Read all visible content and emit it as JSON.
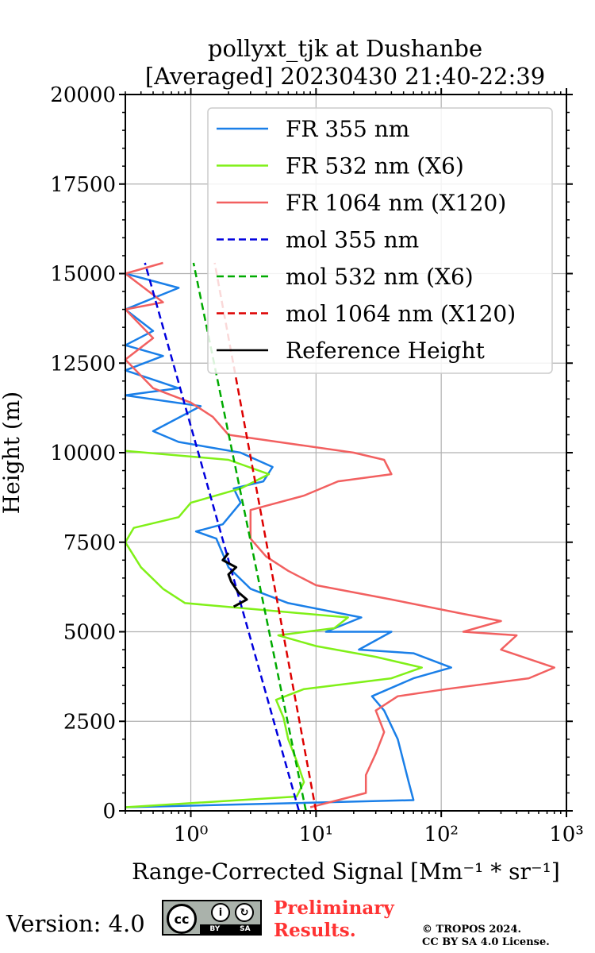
{
  "chart_data": {
    "type": "line",
    "title_line1": "pollyxt_tjk at Dushanbe",
    "title_line2": "[Averaged] 20230430 21:40-22:39",
    "xlabel": "Range-Corrected Signal [Mm⁻¹ * sr⁻¹]",
    "ylabel": "Height (m)",
    "xscale": "log",
    "xlim": [
      0.3,
      1000
    ],
    "ylim": [
      0,
      20000
    ],
    "x_ticks": [
      1,
      10,
      100,
      1000
    ],
    "x_tick_labels": [
      "10⁰",
      "10¹",
      "10²",
      "10³"
    ],
    "y_ticks": [
      0,
      2500,
      5000,
      7500,
      10000,
      12500,
      15000,
      17500,
      20000
    ],
    "y_tick_labels": [
      "0",
      "2500",
      "5000",
      "7500",
      "10000",
      "12500",
      "15000",
      "17500",
      "20000"
    ],
    "grid": true,
    "legend_position": "top-right",
    "series": [
      {
        "name": "FR 355 nm",
        "color": "#1a7fe8",
        "style": "solid",
        "points": [
          [
            0.3,
            100
          ],
          [
            60,
            300
          ],
          [
            55,
            800
          ],
          [
            45,
            2000
          ],
          [
            35,
            2800
          ],
          [
            28,
            3200
          ],
          [
            60,
            3700
          ],
          [
            120,
            4000
          ],
          [
            60,
            4400
          ],
          [
            22,
            4500
          ],
          [
            40,
            5000
          ],
          [
            12,
            5000
          ],
          [
            23,
            5400
          ],
          [
            6,
            5800
          ],
          [
            3,
            6200
          ],
          [
            2,
            6800
          ],
          [
            1.6,
            7600
          ],
          [
            1.1,
            7800
          ],
          [
            1.8,
            8000
          ],
          [
            2.5,
            8600
          ],
          [
            2.2,
            9000
          ],
          [
            3.8,
            9200
          ],
          [
            4.5,
            9600
          ],
          [
            2.5,
            10000
          ],
          [
            0.8,
            10300
          ],
          [
            0.5,
            10600
          ],
          [
            1.2,
            11300
          ],
          [
            0.3,
            11600
          ],
          [
            0.8,
            11800
          ],
          [
            0.3,
            12300
          ],
          [
            0.6,
            12700
          ],
          [
            0.3,
            13000
          ],
          [
            0.5,
            13400
          ],
          [
            0.3,
            14000
          ],
          [
            0.8,
            14600
          ],
          [
            0.3,
            15000
          ]
        ]
      },
      {
        "name": "FR 532 nm (X6)",
        "color": "#80f018",
        "style": "solid",
        "points": [
          [
            0.3,
            100
          ],
          [
            7,
            400
          ],
          [
            8,
            800
          ],
          [
            7,
            1400
          ],
          [
            6,
            2000
          ],
          [
            5.5,
            2600
          ],
          [
            4.8,
            3100
          ],
          [
            8,
            3400
          ],
          [
            40,
            3700
          ],
          [
            70,
            4000
          ],
          [
            30,
            4300
          ],
          [
            10,
            4600
          ],
          [
            5,
            4900
          ],
          [
            14,
            5100
          ],
          [
            18,
            5400
          ],
          [
            0.9,
            5800
          ],
          [
            0.6,
            6200
          ],
          [
            0.4,
            6800
          ],
          [
            0.3,
            7500
          ],
          [
            0.35,
            7900
          ],
          [
            0.8,
            8200
          ],
          [
            1.0,
            8600
          ],
          [
            2.5,
            9000
          ],
          [
            4.2,
            9400
          ],
          [
            2.0,
            9800
          ],
          [
            0.3,
            10050
          ]
        ]
      },
      {
        "name": "FR 1064 nm (X120)",
        "color": "#f26060",
        "style": "solid",
        "points": [
          [
            9,
            100
          ],
          [
            25,
            500
          ],
          [
            25,
            1000
          ],
          [
            30,
            1600
          ],
          [
            35,
            2200
          ],
          [
            30,
            2800
          ],
          [
            45,
            3200
          ],
          [
            110,
            3400
          ],
          [
            500,
            3700
          ],
          [
            800,
            4000
          ],
          [
            300,
            4500
          ],
          [
            400,
            4900
          ],
          [
            150,
            5000
          ],
          [
            300,
            5300
          ],
          [
            150,
            5500
          ],
          [
            40,
            5900
          ],
          [
            10,
            6300
          ],
          [
            6,
            6700
          ],
          [
            4,
            7100
          ],
          [
            3,
            7600
          ],
          [
            3,
            8400
          ],
          [
            8,
            8800
          ],
          [
            15,
            9200
          ],
          [
            40,
            9400
          ],
          [
            35,
            9800
          ],
          [
            20,
            10000
          ],
          [
            5,
            10300
          ],
          [
            2,
            10500
          ],
          [
            1.5,
            11000
          ],
          [
            1.0,
            11400
          ],
          [
            0.5,
            11800
          ],
          [
            0.3,
            12600
          ],
          [
            0.5,
            13200
          ],
          [
            0.3,
            14000
          ],
          [
            0.6,
            14200
          ],
          [
            0.3,
            15000
          ],
          [
            0.6,
            15300
          ]
        ]
      },
      {
        "name": "mol 355 nm",
        "color": "#0000dd",
        "style": "dashed",
        "points": [
          [
            7.3,
            0
          ],
          [
            0.43,
            15300
          ]
        ]
      },
      {
        "name": "mol 532 nm (X6)",
        "color": "#00aa00",
        "style": "dashed",
        "points": [
          [
            8.3,
            0
          ],
          [
            1.05,
            15300
          ]
        ]
      },
      {
        "name": "mol 1064 nm (X120)",
        "color": "#dd0000",
        "style": "dashed",
        "points": [
          [
            10,
            0
          ],
          [
            1.55,
            15300
          ]
        ]
      },
      {
        "name": "Reference Height",
        "color": "#000000",
        "style": "solid",
        "points": [
          [
            2.2,
            5700
          ],
          [
            2.8,
            5900
          ],
          [
            2.4,
            6100
          ],
          [
            2.1,
            6400
          ],
          [
            2.0,
            6600
          ],
          [
            2.3,
            6800
          ],
          [
            1.8,
            7000
          ],
          [
            2.0,
            7200
          ]
        ]
      }
    ]
  },
  "footer": {
    "version": "Version: 4.0",
    "cc_text": "cc",
    "cc_by": "BY",
    "cc_sa": "SA",
    "preliminary_line1": "Preliminary",
    "preliminary_line2": "Results.",
    "copyright_line1": "© TROPOS 2024.",
    "copyright_line2": "CC BY SA 4.0 License."
  }
}
